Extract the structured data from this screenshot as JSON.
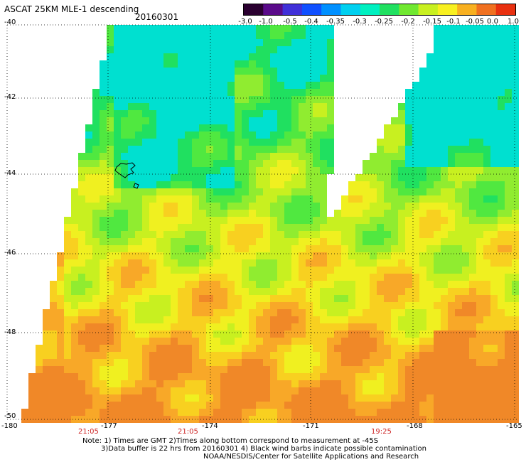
{
  "header": {
    "title": "ASCAT 25KM MLE-1 descending",
    "date": "20160301"
  },
  "colorbar": {
    "ticks": [
      "-3.0",
      "-1.0",
      "-0.5",
      "-0.4",
      "-0.35",
      "-0.3",
      "-0.25",
      "-0.2",
      "-0.15",
      "-0.1",
      "-0.05",
      "0.0",
      "1.0"
    ],
    "colors": [
      "#2a0030",
      "#5a0a8a",
      "#4030d8",
      "#1050ff",
      "#0090ff",
      "#00d0f0",
      "#00f0c0",
      "#20e060",
      "#70e830",
      "#c8f020",
      "#f8f020",
      "#f8b020",
      "#f07020",
      "#e83010"
    ]
  },
  "map": {
    "lat_labels": [
      "-40",
      "-42",
      "-44",
      "-46",
      "-48",
      "-50"
    ],
    "lon_labels": [
      "-180",
      "-177",
      "-174",
      "-171",
      "-168",
      "-165"
    ],
    "time_labels": [
      "21:05",
      "21:05",
      "19:25"
    ]
  },
  "notes": [
    "Note: 1) Times are GMT 2)Times along bottom correspond to measurement at -45S",
    "3)Data buffer is 22 hrs from 20160301 4) Black wind barbs indicate possible contamination",
    "NOAA/NESDIS/Center for Satellite Applications and Research"
  ]
}
